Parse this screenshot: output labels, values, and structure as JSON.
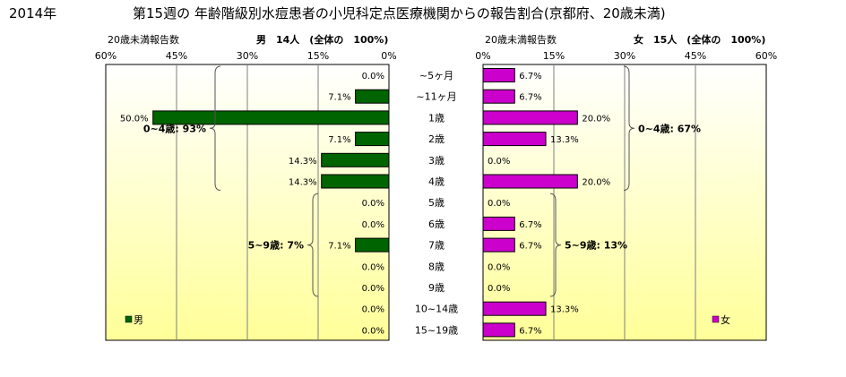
{
  "header": {
    "year": "2014年",
    "title": "第15週の 年齢階級別水痘患者の小児科定点医療機関からの報告割合(京都府、20歳未満)"
  },
  "colors": {
    "male_bar": "#006400",
    "female_bar": "#cc00cc",
    "plot_top": "#ffffff",
    "plot_bottom": "#ffff99",
    "grid": "#7f7f7f"
  },
  "chart_data": [
    {
      "type": "bar",
      "orientation": "horizontal",
      "side": "left",
      "subtitle_left": "20歳未満報告数",
      "subtitle_right": "男　14人　(全体の　100%)",
      "legend": "男",
      "legend_placement": "bottom-left",
      "xlim": [
        0,
        60
      ],
      "x_reversed": true,
      "tick_labels": [
        "60%",
        "45%",
        "30%",
        "15%",
        "0%"
      ],
      "grid": true,
      "categories": [
        "~5ヶ月",
        "~11ヶ月",
        "1歳",
        "2歳",
        "3歳",
        "4歳",
        "5歳",
        "6歳",
        "7歳",
        "8歳",
        "9歳",
        "10~14歳",
        "15~19歳"
      ],
      "series": [
        {
          "name": "男",
          "values": [
            0.0,
            7.1,
            50.0,
            7.1,
            14.3,
            14.3,
            0.0,
            0.0,
            7.1,
            0.0,
            0.0,
            0.0,
            0.0
          ],
          "labels": [
            "0.0%",
            "7.1%",
            "50.0%",
            "7.1%",
            "14.3%",
            "14.3%",
            "0.0%",
            "0.0%",
            "7.1%",
            "0.0%",
            "0.0%",
            "0.0%",
            "0.0%"
          ]
        }
      ],
      "annotations": [
        {
          "text": "0~4歳: 93%",
          "from": 0,
          "to": 5
        },
        {
          "text": "5~9歳: 7%",
          "from": 6,
          "to": 10
        }
      ]
    },
    {
      "type": "bar",
      "orientation": "horizontal",
      "side": "right",
      "subtitle_left": "20歳未満報告数",
      "subtitle_right": "女　15人　(全体の　100%)",
      "legend": "女",
      "legend_placement": "bottom-right",
      "xlim": [
        0,
        60
      ],
      "x_reversed": false,
      "tick_labels": [
        "0%",
        "15%",
        "30%",
        "45%",
        "60%"
      ],
      "grid": true,
      "categories": [
        "~5ヶ月",
        "~11ヶ月",
        "1歳",
        "2歳",
        "3歳",
        "4歳",
        "5歳",
        "6歳",
        "7歳",
        "8歳",
        "9歳",
        "10~14歳",
        "15~19歳"
      ],
      "series": [
        {
          "name": "女",
          "values": [
            6.7,
            6.7,
            20.0,
            13.3,
            0.0,
            20.0,
            0.0,
            6.7,
            6.7,
            0.0,
            0.0,
            13.3,
            6.7
          ],
          "labels": [
            "6.7%",
            "6.7%",
            "20.0%",
            "13.3%",
            "0.0%",
            "20.0%",
            "0.0%",
            "6.7%",
            "6.7%",
            "0.0%",
            "0.0%",
            "13.3%",
            "6.7%"
          ]
        }
      ],
      "annotations": [
        {
          "text": "0~4歳: 67%",
          "from": 0,
          "to": 5
        },
        {
          "text": "5~9歳: 13%",
          "from": 6,
          "to": 10
        }
      ]
    }
  ]
}
